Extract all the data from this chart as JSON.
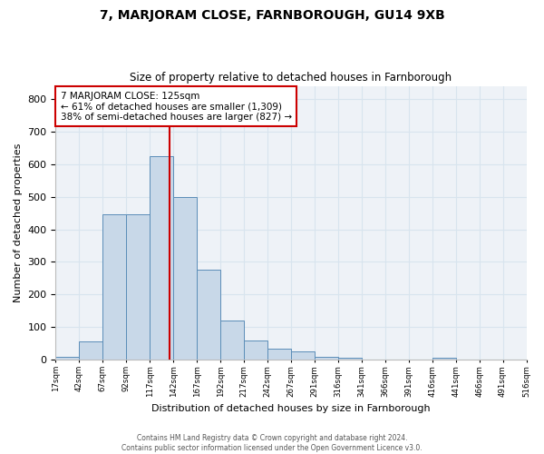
{
  "title": "7, MARJORAM CLOSE, FARNBOROUGH, GU14 9XB",
  "subtitle": "Size of property relative to detached houses in Farnborough",
  "xlabel": "Distribution of detached houses by size in Farnborough",
  "ylabel": "Number of detached properties",
  "bar_color": "#c8d8e8",
  "bar_edge_color": "#5b8db8",
  "bar_heights": [
    10,
    55,
    445,
    445,
    625,
    500,
    275,
    120,
    60,
    35,
    25,
    10,
    5,
    0,
    0,
    0,
    5,
    0,
    0,
    0
  ],
  "bin_labels": [
    "17sqm",
    "42sqm",
    "67sqm",
    "92sqm",
    "117sqm",
    "142sqm",
    "167sqm",
    "192sqm",
    "217sqm",
    "242sqm",
    "267sqm",
    "291sqm",
    "316sqm",
    "341sqm",
    "366sqm",
    "391sqm",
    "416sqm",
    "441sqm",
    "466sqm",
    "491sqm",
    "516sqm"
  ],
  "ylim": [
    0,
    840
  ],
  "yticks": [
    0,
    100,
    200,
    300,
    400,
    500,
    600,
    700,
    800
  ],
  "vline_pos": 4.32,
  "vline_color": "#cc0000",
  "annotation_box_color": "#ffffff",
  "annotation_box_edge": "#cc0000",
  "annotation_marker_label": "7 MARJORAM CLOSE: 125sqm",
  "annotation_line1": "← 61% of detached houses are smaller (1,309)",
  "annotation_line2": "38% of semi-detached houses are larger (827) →",
  "grid_color": "#d8e4ee",
  "background_color": "#eef2f7",
  "footer_line1": "Contains HM Land Registry data © Crown copyright and database right 2024.",
  "footer_line2": "Contains public sector information licensed under the Open Government Licence v3.0."
}
